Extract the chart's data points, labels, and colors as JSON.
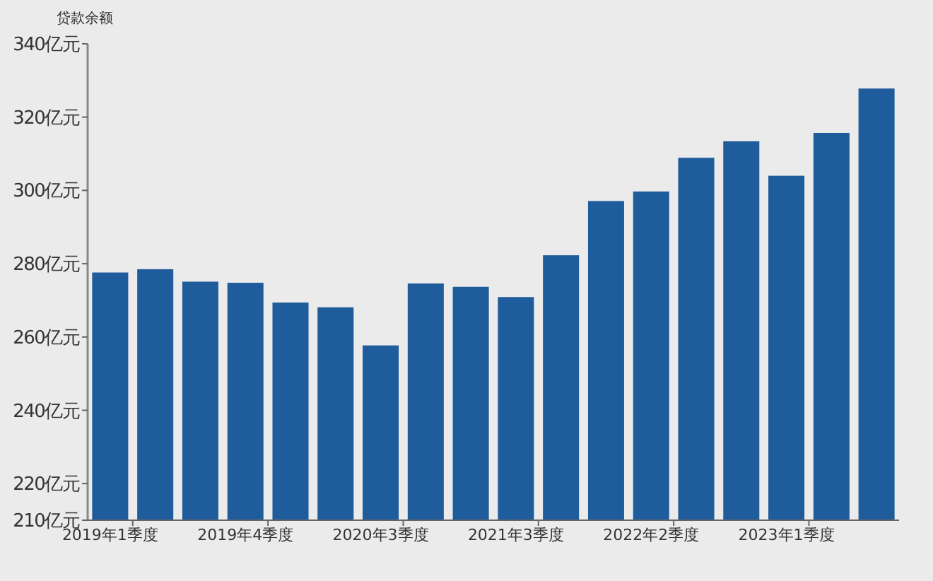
{
  "chart_data": {
    "type": "bar",
    "ylabel": "贷款余额",
    "categories": [
      "2019年1季度",
      null,
      null,
      "2019年4季度",
      null,
      null,
      "2020年3季度",
      null,
      null,
      "2021年3季度",
      null,
      null,
      "2022年2季度",
      null,
      null,
      "2023年1季度",
      null,
      null
    ],
    "values": [
      277.6,
      278.5,
      275.1,
      274.8,
      269.4,
      268.1,
      257.7,
      274.6,
      273.7,
      270.9,
      282.3,
      297.1,
      299.7,
      308.9,
      313.4,
      304.0,
      315.7,
      327.8
    ],
    "color": "#1f5c9c",
    "ylim": [
      210,
      340
    ],
    "yticks": [
      {
        "value": 210,
        "label": "210亿元"
      },
      {
        "value": 220,
        "label": "220亿元"
      },
      {
        "value": 240,
        "label": "240亿元"
      },
      {
        "value": 260,
        "label": "260亿元"
      },
      {
        "value": 280,
        "label": "280亿元"
      },
      {
        "value": 300,
        "label": "300亿元"
      },
      {
        "value": 320,
        "label": "320亿元"
      },
      {
        "value": 340,
        "label": "340亿元"
      }
    ],
    "grid": false
  }
}
